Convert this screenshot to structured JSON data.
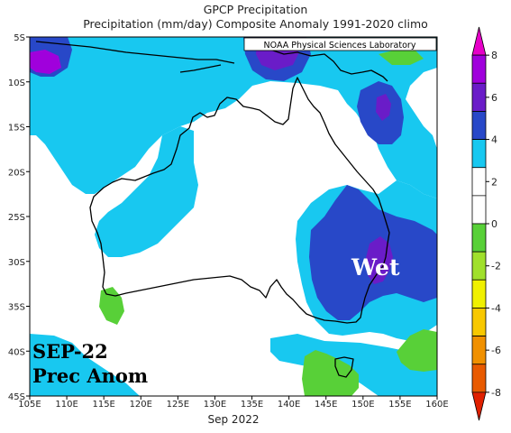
{
  "title_line1": "GPCP Precipitation",
  "title_line2": "Precipitation (mm/day) Composite Anomaly 1991-2020 climo",
  "credit": "NOAA Physical Sciences Laboratory",
  "xlabel": "Sep 2022",
  "overlay": {
    "line1": "SEP-22",
    "line2": "Prec Anom",
    "wet": "Wet"
  },
  "map": {
    "lon_range": [
      105,
      160
    ],
    "lat_range": [
      -45,
      -5
    ],
    "lon_ticks": [
      "105E",
      "110E",
      "115E",
      "120E",
      "125E",
      "130E",
      "135E",
      "140E",
      "145E",
      "150E",
      "155E",
      "160E"
    ],
    "lat_ticks": [
      "5S",
      "10S",
      "15S",
      "20S",
      "25S",
      "30S",
      "35S",
      "40S",
      "45S"
    ]
  },
  "colorbar": {
    "labels": [
      "8",
      "6",
      "4",
      "2",
      "0",
      "-2",
      "-4",
      "-6",
      "-8"
    ],
    "colors": [
      "#e600c8",
      "#a000dc",
      "#6a1cc8",
      "#2848c8",
      "#18c8f0",
      "#ffffff",
      "#ffffff",
      "#58d038",
      "#a0e02c",
      "#f0f000",
      "#f8c800",
      "#f09000",
      "#e85a00",
      "#e02000"
    ]
  }
}
